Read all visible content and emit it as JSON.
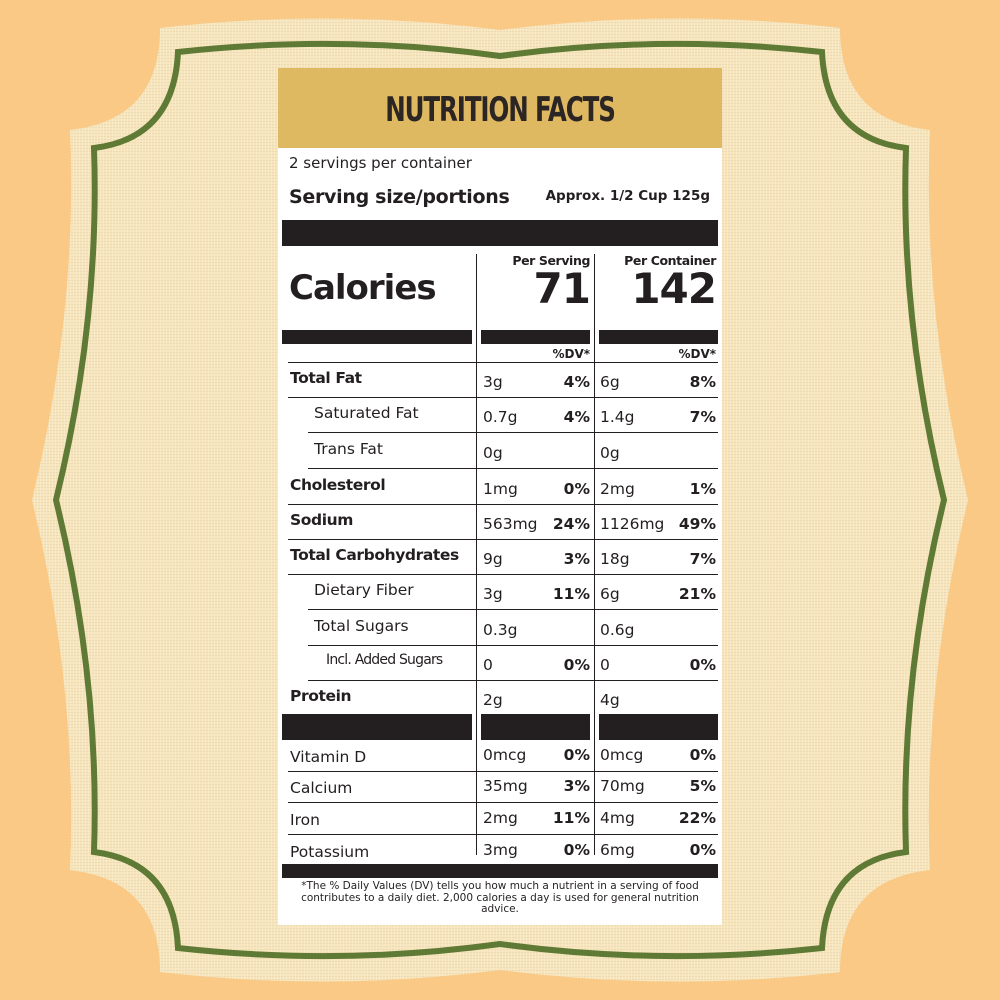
{
  "colors": {
    "background": "#fac985",
    "burlap": "#f6e5bd",
    "frame_border": "#5f7a34",
    "header": "#dfb862",
    "ink": "#231f20"
  },
  "title": "NUTRITION FACTS",
  "servings_per_container": "2 servings per container",
  "serving_size_label": "Serving size/portions",
  "serving_size_value": "Approx. 1/2 Cup 125g",
  "calories": {
    "label": "Calories",
    "per_serving_label": "Per Serving",
    "per_serving_value": "71",
    "per_container_label": "Per Container",
    "per_container_value": "142"
  },
  "dv_header": "%DV*",
  "nutrients": [
    {
      "name": "Total Fat",
      "serving_amount": "3g",
      "serving_dv": "4%",
      "container_amount": "6g",
      "container_dv": "8%"
    },
    {
      "name": "Saturated Fat",
      "serving_amount": "0.7g",
      "serving_dv": "4%",
      "container_amount": "1.4g",
      "container_dv": "7%"
    },
    {
      "name": "Trans Fat",
      "serving_amount": "0g",
      "serving_dv": "",
      "container_amount": "0g",
      "container_dv": ""
    },
    {
      "name": "Cholesterol",
      "serving_amount": "1mg",
      "serving_dv": "0%",
      "container_amount": "2mg",
      "container_dv": "1%"
    },
    {
      "name": "Sodium",
      "serving_amount": "563mg",
      "serving_dv": "24%",
      "container_amount": "1126mg",
      "container_dv": "49%"
    },
    {
      "name": "Total Carbohydrates",
      "serving_amount": "9g",
      "serving_dv": "3%",
      "container_amount": "18g",
      "container_dv": "7%"
    },
    {
      "name": "Dietary Fiber",
      "serving_amount": "3g",
      "serving_dv": "11%",
      "container_amount": "6g",
      "container_dv": "21%"
    },
    {
      "name": "Total Sugars",
      "serving_amount": "0.3g",
      "serving_dv": "",
      "container_amount": "0.6g",
      "container_dv": ""
    },
    {
      "name": "Incl. Added Sugars",
      "serving_amount": "0",
      "serving_dv": "0%",
      "container_amount": "0",
      "container_dv": "0%"
    },
    {
      "name": "Protein",
      "serving_amount": "2g",
      "serving_dv": "",
      "container_amount": "4g",
      "container_dv": ""
    }
  ],
  "vitamins": [
    {
      "name": "Vitamin D",
      "serving_amount": "0mcg",
      "serving_dv": "0%",
      "container_amount": "0mcg",
      "container_dv": "0%"
    },
    {
      "name": "Calcium",
      "serving_amount": "35mg",
      "serving_dv": "3%",
      "container_amount": "70mg",
      "container_dv": "5%"
    },
    {
      "name": "Iron",
      "serving_amount": "2mg",
      "serving_dv": "11%",
      "container_amount": "4mg",
      "container_dv": "22%"
    },
    {
      "name": "Potassium",
      "serving_amount": "3mg",
      "serving_dv": "0%",
      "container_amount": "6mg",
      "container_dv": "0%"
    }
  ],
  "footnote": "*The % Daily Values (DV) tells you how much a nutrient in a serving of food contributes to a daily diet. 2,000 calories a day is used for general nutrition advice."
}
